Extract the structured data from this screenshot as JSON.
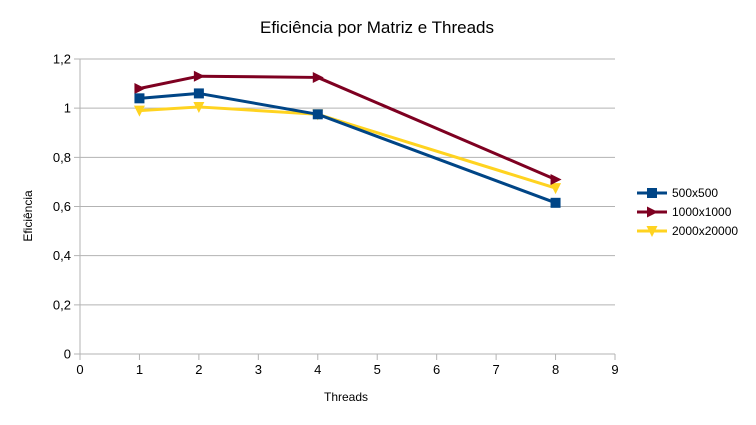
{
  "chart_data": {
    "type": "line",
    "title": "Eficiência por Matriz e Threads",
    "xlabel": "Threads",
    "ylabel": "Eficiência",
    "xlim": [
      0,
      9
    ],
    "ylim": [
      0,
      1.2
    ],
    "x_ticks": [
      "0",
      "1",
      "2",
      "3",
      "4",
      "5",
      "6",
      "7",
      "8",
      "9"
    ],
    "y_ticks": [
      "0",
      "0,2",
      "0,4",
      "0,6",
      "0,8",
      "1",
      "1,2"
    ],
    "grid": "horizontal",
    "legend_position": "right",
    "x": [
      1,
      2,
      4,
      8
    ],
    "series": [
      {
        "name": "500x500",
        "color": "#004586",
        "marker": "square",
        "values": [
          1.04,
          1.06,
          0.975,
          0.615
        ]
      },
      {
        "name": "1000x1000",
        "color": "#7e0021",
        "marker": "triangle-right",
        "values": [
          1.08,
          1.13,
          1.125,
          0.71
        ]
      },
      {
        "name": "2000x20000",
        "color": "#ffd320",
        "marker": "triangle-down",
        "values": [
          0.99,
          1.005,
          0.975,
          0.675
        ]
      }
    ]
  }
}
